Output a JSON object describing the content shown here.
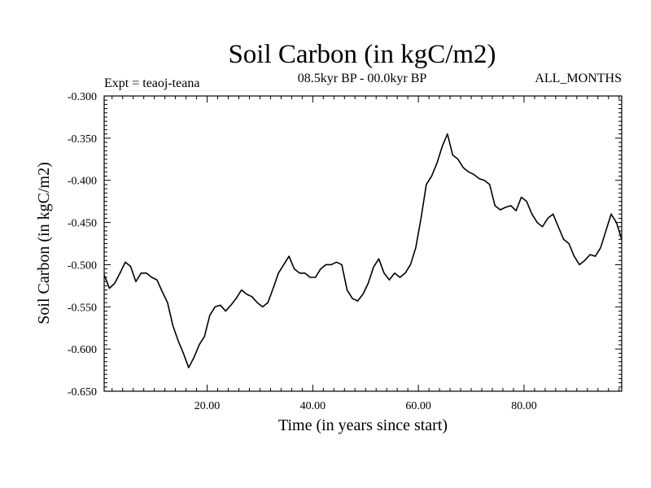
{
  "chart_data": {
    "type": "line",
    "title": "Soil Carbon (in kgC/m2)",
    "subtitle": "08.5kyr BP - 00.0kyr BP",
    "left_note": "Expt = teaoj-teana",
    "right_note": "ALL_MONTHS",
    "xlabel": "Time (in years since start)",
    "ylabel": "Soil Carbon (in kgC/m2)",
    "xlim": [
      0.5,
      98.5
    ],
    "ylim": [
      -0.65,
      -0.3
    ],
    "x_ticks": [
      20,
      40,
      60,
      80
    ],
    "x_tick_labels": [
      "20.00",
      "40.00",
      "60.00",
      "80.00"
    ],
    "y_ticks": [
      -0.3,
      -0.35,
      -0.4,
      -0.45,
      -0.5,
      -0.55,
      -0.6,
      -0.65
    ],
    "y_tick_labels": [
      "-0.300",
      "-0.350",
      "-0.400",
      "-0.450",
      "-0.500",
      "-0.550",
      "-0.600",
      "-0.650"
    ],
    "series": [
      {
        "name": "Soil Carbon",
        "x": [
          0.5,
          1.5,
          2.5,
          3.5,
          4.5,
          5.5,
          6.5,
          7.5,
          8.5,
          9.5,
          10.5,
          11.5,
          12.5,
          13.5,
          14.5,
          15.5,
          16.5,
          17.5,
          18.5,
          19.5,
          20.5,
          21.5,
          22.5,
          23.5,
          24.5,
          25.5,
          26.5,
          27.5,
          28.5,
          29.5,
          30.5,
          31.5,
          32.5,
          33.5,
          34.5,
          35.5,
          36.5,
          37.5,
          38.5,
          39.5,
          40.5,
          41.5,
          42.5,
          43.5,
          44.5,
          45.5,
          46.5,
          47.5,
          48.5,
          49.5,
          50.5,
          51.5,
          52.5,
          53.5,
          54.5,
          55.5,
          56.5,
          57.5,
          58.5,
          59.5,
          60.5,
          61.5,
          62.5,
          63.5,
          64.5,
          65.5,
          66.5,
          67.5,
          68.5,
          69.5,
          70.5,
          71.5,
          72.5,
          73.5,
          74.5,
          75.5,
          76.5,
          77.5,
          78.5,
          79.5,
          80.5,
          81.5,
          82.5,
          83.5,
          84.5,
          85.5,
          86.5,
          87.5,
          88.5,
          89.5,
          90.5,
          91.5,
          92.5,
          93.5,
          94.5,
          95.5,
          96.5,
          97.5,
          98.5
        ],
        "values": [
          -0.512,
          -0.528,
          -0.522,
          -0.51,
          -0.497,
          -0.502,
          -0.52,
          -0.51,
          -0.51,
          -0.515,
          -0.518,
          -0.532,
          -0.545,
          -0.572,
          -0.59,
          -0.605,
          -0.622,
          -0.61,
          -0.595,
          -0.585,
          -0.56,
          -0.55,
          -0.548,
          -0.555,
          -0.548,
          -0.54,
          -0.53,
          -0.535,
          -0.538,
          -0.545,
          -0.55,
          -0.545,
          -0.528,
          -0.51,
          -0.5,
          -0.49,
          -0.505,
          -0.51,
          -0.51,
          -0.515,
          -0.515,
          -0.505,
          -0.5,
          -0.5,
          -0.497,
          -0.5,
          -0.53,
          -0.54,
          -0.543,
          -0.535,
          -0.522,
          -0.503,
          -0.493,
          -0.51,
          -0.518,
          -0.51,
          -0.515,
          -0.51,
          -0.5,
          -0.48,
          -0.445,
          -0.405,
          -0.395,
          -0.38,
          -0.36,
          -0.345,
          -0.37,
          -0.375,
          -0.385,
          -0.39,
          -0.393,
          -0.398,
          -0.4,
          -0.405,
          -0.43,
          -0.435,
          -0.432,
          -0.43,
          -0.436,
          -0.42,
          -0.425,
          -0.44,
          -0.45,
          -0.455,
          -0.445,
          -0.44,
          -0.455,
          -0.47,
          -0.475,
          -0.49,
          -0.5,
          -0.495,
          -0.488,
          -0.49,
          -0.48,
          -0.46,
          -0.44,
          -0.45,
          -0.47
        ]
      }
    ]
  }
}
